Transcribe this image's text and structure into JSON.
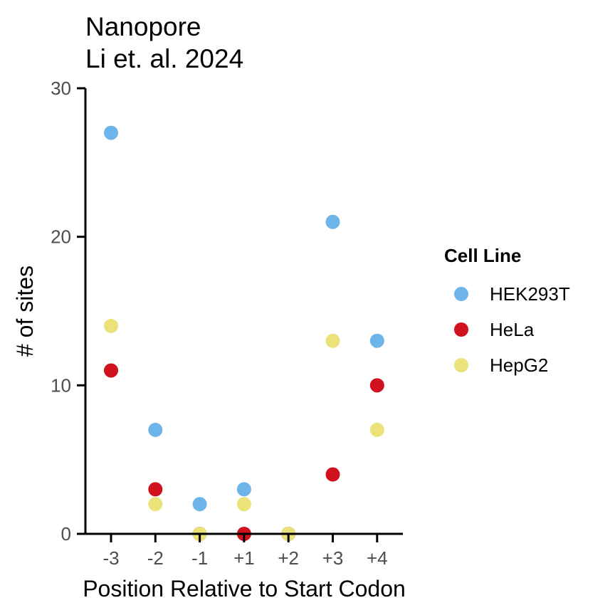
{
  "chart_data": {
    "type": "scatter",
    "title": [
      "Nanopore",
      "Li et. al. 2024"
    ],
    "xlabel": "Position Relative to Start Codon",
    "ylabel": "# of sites",
    "categories": [
      "-3",
      "-2",
      "-1",
      "+1",
      "+2",
      "+3",
      "+4"
    ],
    "ylim": [
      0,
      30
    ],
    "yticks": [
      0,
      10,
      20,
      30
    ],
    "grid": false,
    "legend": {
      "title": "Cell Line",
      "placement": "right"
    },
    "series": [
      {
        "name": "HEK293T",
        "color": "#6cb4ea",
        "values": [
          27,
          7,
          2,
          3,
          0,
          21,
          13
        ]
      },
      {
        "name": "HeLa",
        "color": "#d0111e",
        "values": [
          11,
          3,
          0,
          0,
          0,
          4,
          10
        ]
      },
      {
        "name": "HepG2",
        "color": "#ece27a",
        "values": [
          14,
          2,
          0,
          2,
          0,
          13,
          7
        ]
      }
    ]
  }
}
